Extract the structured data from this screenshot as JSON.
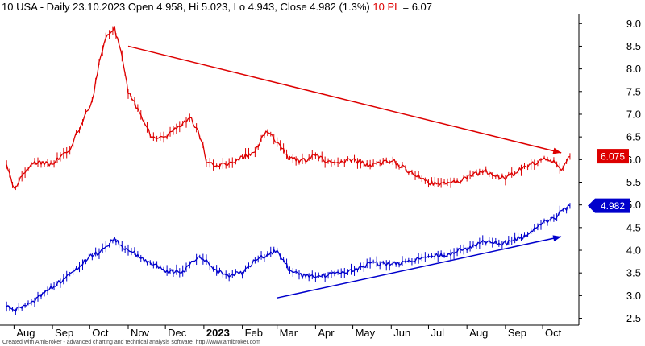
{
  "header": {
    "title_text": "10 USA - Daily 23.10.2023 Open 4.958, Hi 5.023, Lo 4.943, Close 4.982 (1.3%)",
    "pl_label": "10 PL",
    "pl_value": " = 6.07"
  },
  "footer": {
    "credit": "Created with AmiBroker - advanced charting and technical analysis software. http://www.amibroker.com"
  },
  "colors": {
    "us": "#0000cc",
    "pl": "#dd0000",
    "axis": "#000000"
  },
  "chart_data": {
    "type": "line",
    "ylim": [
      2.35,
      9.2
    ],
    "yticks": [
      "2.5",
      "3.0",
      "3.5",
      "4.0",
      "4.5",
      "5.0",
      "5.5",
      "6.0",
      "6.5",
      "7.0",
      "7.5",
      "8.0",
      "8.5",
      "9.0"
    ],
    "months": [
      "Aug",
      "Sep",
      "Oct",
      "Nov",
      "Dec",
      "2023",
      "Feb",
      "Mar",
      "Apr",
      "May",
      "Jun",
      "Jul",
      "Aug",
      "Sep",
      "Oct"
    ],
    "x_dates": [
      "2022-07-26",
      "2022-08-01",
      "2022-08-15",
      "2022-09-01",
      "2022-09-15",
      "2022-10-03",
      "2022-10-10",
      "2022-10-14",
      "2022-10-21",
      "2022-10-27",
      "2022-11-01",
      "2022-11-10",
      "2022-11-20",
      "2022-12-01",
      "2022-12-15",
      "2022-12-22",
      "2022-12-30",
      "2023-01-03",
      "2023-01-10",
      "2023-01-20",
      "2023-02-01",
      "2023-02-10",
      "2023-02-20",
      "2023-03-01",
      "2023-03-10",
      "2023-03-20",
      "2023-04-01",
      "2023-04-15",
      "2023-05-01",
      "2023-05-15",
      "2023-06-01",
      "2023-06-15",
      "2023-07-01",
      "2023-07-15",
      "2023-08-01",
      "2023-08-15",
      "2023-09-01",
      "2023-09-15",
      "2023-10-01",
      "2023-10-10",
      "2023-10-16",
      "2023-10-23"
    ],
    "series": [
      {
        "name": "10 USA",
        "values": [
          2.75,
          2.65,
          2.85,
          3.2,
          3.45,
          3.9,
          3.95,
          4.1,
          4.25,
          4.05,
          4.05,
          3.85,
          3.7,
          3.55,
          3.5,
          3.75,
          3.85,
          3.75,
          3.55,
          3.45,
          3.5,
          3.75,
          3.9,
          4.0,
          3.6,
          3.45,
          3.4,
          3.5,
          3.55,
          3.7,
          3.7,
          3.75,
          3.85,
          3.9,
          4.05,
          4.2,
          4.15,
          4.3,
          4.6,
          4.7,
          4.85,
          4.98
        ]
      },
      {
        "name": "10 PL",
        "values": [
          5.85,
          5.35,
          5.95,
          5.9,
          6.25,
          7.3,
          8.3,
          8.7,
          8.9,
          8.25,
          7.5,
          7.05,
          6.5,
          6.5,
          6.8,
          6.9,
          6.45,
          5.95,
          5.85,
          5.9,
          6.05,
          6.15,
          6.6,
          6.4,
          6.05,
          5.95,
          6.1,
          5.9,
          6.0,
          5.85,
          6.0,
          5.75,
          5.5,
          5.45,
          5.6,
          5.75,
          5.6,
          5.8,
          6.0,
          5.95,
          5.75,
          6.07
        ]
      }
    ],
    "last_values": {
      "pl": "6.075",
      "us": "4.982"
    },
    "annotations": [
      {
        "type": "arrow",
        "color": "red",
        "from": {
          "date": "2022-11-01",
          "y": 8.5
        },
        "to": {
          "date": "2023-10-16",
          "y": 6.15
        }
      },
      {
        "type": "arrow",
        "color": "blue",
        "from": {
          "date": "2023-03-01",
          "y": 2.95
        },
        "to": {
          "date": "2023-10-16",
          "y": 4.3
        }
      }
    ]
  }
}
